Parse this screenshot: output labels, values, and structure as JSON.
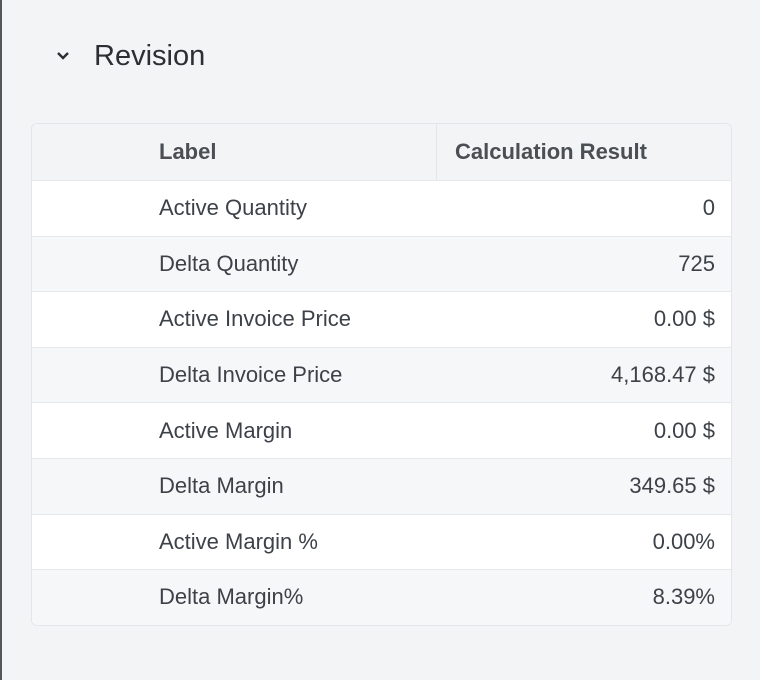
{
  "section": {
    "title": "Revision",
    "expanded": true
  },
  "table": {
    "headers": [
      "Label",
      "Calculation Result"
    ],
    "rows": [
      {
        "label": "Active Quantity",
        "value": "0"
      },
      {
        "label": "Delta Quantity",
        "value": "725"
      },
      {
        "label": "Active Invoice Price",
        "value": "0.00 $"
      },
      {
        "label": "Delta Invoice Price",
        "value": "4,168.47 $"
      },
      {
        "label": "Active Margin",
        "value": "0.00 $"
      },
      {
        "label": "Delta Margin",
        "value": "349.65 $"
      },
      {
        "label": "Active Margin %",
        "value": "0.00%"
      },
      {
        "label": "Delta Margin%",
        "value": "8.39%"
      }
    ]
  }
}
